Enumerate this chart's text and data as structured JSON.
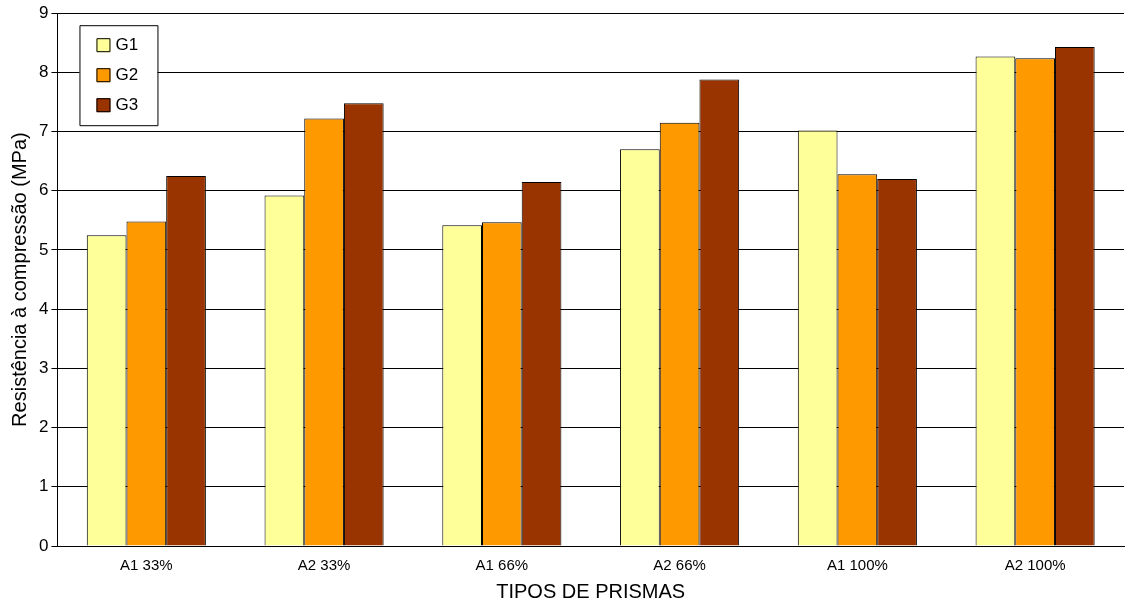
{
  "chart_data": {
    "type": "bar",
    "xlabel": "TIPOS DE PRISMAS",
    "ylabel": "Resistência à compressão (MPa)",
    "categories": [
      "A1 33%",
      "A2 33%",
      "A1 66%",
      "A2 66%",
      "A1 100%",
      "A2 100%"
    ],
    "series": [
      {
        "name": "G1",
        "color": "#ffff99",
        "values": [
          5.25,
          5.92,
          5.42,
          6.7,
          7.02,
          8.27
        ]
      },
      {
        "name": "G2",
        "color": "#ff9900",
        "values": [
          5.48,
          7.22,
          5.47,
          7.15,
          6.28,
          8.24
        ]
      },
      {
        "name": "G3",
        "color": "#993300",
        "values": [
          6.25,
          7.48,
          6.15,
          7.88,
          6.2,
          8.43
        ]
      }
    ],
    "ylim": [
      0,
      9
    ],
    "yticks": [
      0,
      1,
      2,
      3,
      4,
      5,
      6,
      7,
      8,
      9
    ],
    "grid": "y",
    "legend": "top left"
  }
}
